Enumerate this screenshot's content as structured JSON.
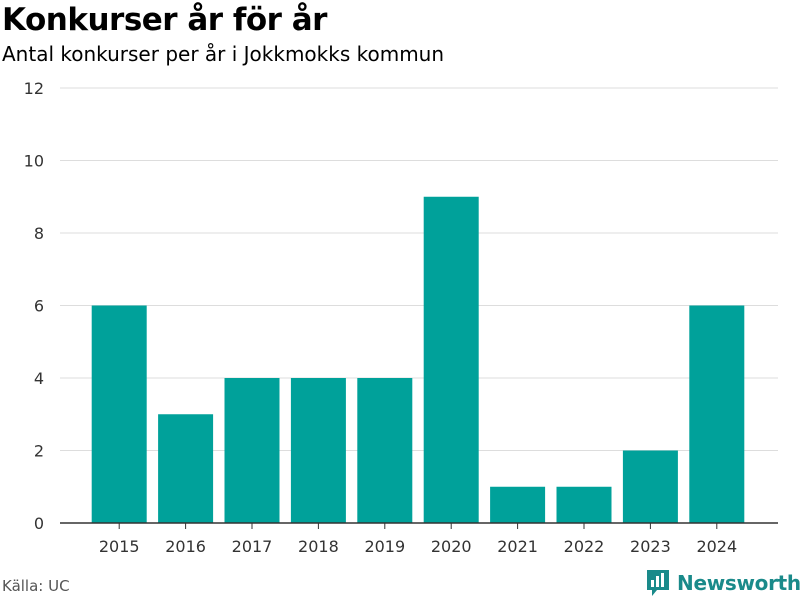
{
  "chart_data": {
    "type": "bar",
    "title": "Konkurser år för år",
    "subtitle": "Antal konkurser per år i Jokkmokks kommun",
    "categories": [
      "2015",
      "2016",
      "2017",
      "2018",
      "2019",
      "2020",
      "2021",
      "2022",
      "2023",
      "2024"
    ],
    "values": [
      6,
      3,
      4,
      4,
      4,
      9,
      1,
      1,
      2,
      6
    ],
    "ylim": [
      0,
      12
    ],
    "yticks": [
      0,
      2,
      4,
      6,
      8,
      10,
      12
    ],
    "grid": true,
    "bar_color": "#00a19a",
    "xlabel": "",
    "ylabel": ""
  },
  "footer": {
    "source": "Källa: UC",
    "brand": "Newsworthy",
    "brand_icon": "newsworthy-logo-icon",
    "brand_color": "#1a8a8a"
  }
}
